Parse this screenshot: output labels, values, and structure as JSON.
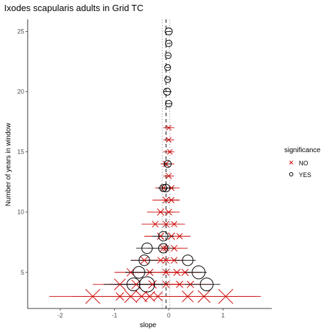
{
  "chart_data": {
    "type": "scatter",
    "title": "Ixodes scapularis adults in Grid TC",
    "xlabel": "slope",
    "ylabel": "Number of years in window",
    "xlim": [
      -2.6,
      1.9
    ],
    "ylim": [
      2.0,
      26.0
    ],
    "x_ticks": [
      -2,
      -1,
      0,
      1
    ],
    "x_tick_labels": [
      "-2",
      "-1",
      "0",
      "1"
    ],
    "y_ticks": [
      5,
      10,
      15,
      20,
      25
    ],
    "y_tick_labels": [
      "5",
      "10",
      "15",
      "20",
      "25"
    ],
    "reference_lines": {
      "solid_x": -0.05,
      "dashed_x": [
        -0.12,
        0.02
      ]
    },
    "grid": false,
    "legend": {
      "title": "significance",
      "position": "right",
      "entries": [
        {
          "label": "NO",
          "marker": "x",
          "color": "#cc0000"
        },
        {
          "label": "YES",
          "marker": "circle",
          "color": "#000000"
        }
      ]
    },
    "series": [
      {
        "name": "NO",
        "marker": "x",
        "color": "#cc0000",
        "points": [
          {
            "x": -1.4,
            "y": 3,
            "size": 1.0,
            "xmin": -2.2,
            "xmax": -0.5
          },
          {
            "x": -0.9,
            "y": 3,
            "size": 0.4,
            "xmin": -1.8,
            "xmax": 0.2
          },
          {
            "x": -0.7,
            "y": 3,
            "size": 0.8,
            "xmin": -1.6,
            "xmax": 0.4
          },
          {
            "x": -0.5,
            "y": 3,
            "size": 0.7,
            "xmin": -1.4,
            "xmax": 0.5
          },
          {
            "x": -0.35,
            "y": 3,
            "size": 0.6,
            "xmin": -1.3,
            "xmax": 0.7
          },
          {
            "x": -0.2,
            "y": 3,
            "size": 0.5,
            "xmin": -1.0,
            "xmax": 0.8
          },
          {
            "x": 0.35,
            "y": 3,
            "size": 0.7,
            "xmin": -0.6,
            "xmax": 1.3
          },
          {
            "x": 0.65,
            "y": 3,
            "size": 0.8,
            "xmin": -0.3,
            "xmax": 1.6
          },
          {
            "x": 1.05,
            "y": 3,
            "size": 1.0,
            "xmin": 0.0,
            "xmax": 1.7
          },
          {
            "x": -0.9,
            "y": 4,
            "size": 0.7,
            "xmin": -1.4,
            "xmax": -0.2
          },
          {
            "x": -0.6,
            "y": 4,
            "size": 0.5,
            "xmin": -1.1,
            "xmax": 0.0
          },
          {
            "x": -0.3,
            "y": 4,
            "size": 0.4,
            "xmin": -0.8,
            "xmax": 0.2
          },
          {
            "x": -0.05,
            "y": 4,
            "size": 0.3,
            "xmin": -0.4,
            "xmax": 0.3
          },
          {
            "x": 0.2,
            "y": 4,
            "size": 0.3,
            "xmin": -0.2,
            "xmax": 0.6
          },
          {
            "x": 0.4,
            "y": 4,
            "size": 0.3,
            "xmin": 0.0,
            "xmax": 0.8
          },
          {
            "x": -0.7,
            "y": 5,
            "size": 0.4,
            "xmin": -1.0,
            "xmax": -0.3
          },
          {
            "x": -0.35,
            "y": 5,
            "size": 0.3,
            "xmin": -0.7,
            "xmax": 0.0
          },
          {
            "x": -0.05,
            "y": 5,
            "size": 0.25,
            "xmin": -0.3,
            "xmax": 0.2
          },
          {
            "x": 0.15,
            "y": 5,
            "size": 0.3,
            "xmin": -0.1,
            "xmax": 0.4
          },
          {
            "x": 0.3,
            "y": 5,
            "size": 0.3,
            "xmin": 0.0,
            "xmax": 0.6
          },
          {
            "x": -0.45,
            "y": 6,
            "size": 0.3,
            "xmin": -0.7,
            "xmax": -0.2
          },
          {
            "x": -0.15,
            "y": 6,
            "size": 0.25,
            "xmin": -0.4,
            "xmax": 0.1
          },
          {
            "x": -0.05,
            "y": 6,
            "size": 0.2,
            "xmin": -0.25,
            "xmax": 0.2
          },
          {
            "x": 0.1,
            "y": 6,
            "size": 0.25,
            "xmin": -0.1,
            "xmax": 0.3
          },
          {
            "x": -0.1,
            "y": 7,
            "size": 0.3,
            "xmin": -0.4,
            "xmax": 0.3
          },
          {
            "x": -0.05,
            "y": 7,
            "size": 0.2,
            "xmin": -0.3,
            "xmax": 0.2
          },
          {
            "x": 0.1,
            "y": 7,
            "size": 0.25,
            "xmin": -0.1,
            "xmax": 0.35
          },
          {
            "x": -0.15,
            "y": 8,
            "size": 0.3,
            "xmin": -0.45,
            "xmax": 0.2
          },
          {
            "x": 0.05,
            "y": 8,
            "size": 0.3,
            "xmin": -0.2,
            "xmax": 0.35
          },
          {
            "x": 0.2,
            "y": 8,
            "size": 0.2,
            "xmin": 0.0,
            "xmax": 0.4
          },
          {
            "x": -0.25,
            "y": 9,
            "size": 0.25,
            "xmin": -0.5,
            "xmax": 0.0
          },
          {
            "x": -0.05,
            "y": 9,
            "size": 0.25,
            "xmin": -0.3,
            "xmax": 0.2
          },
          {
            "x": 0.1,
            "y": 9,
            "size": 0.2,
            "xmin": -0.1,
            "xmax": 0.3
          },
          {
            "x": -0.15,
            "y": 10,
            "size": 0.3,
            "xmin": -0.4,
            "xmax": 0.1
          },
          {
            "x": 0.0,
            "y": 10,
            "size": 0.25,
            "xmin": -0.2,
            "xmax": 0.2
          },
          {
            "x": -0.05,
            "y": 11,
            "size": 0.25,
            "xmin": -0.3,
            "xmax": 0.2
          },
          {
            "x": 0.05,
            "y": 11,
            "size": 0.2,
            "xmin": -0.1,
            "xmax": 0.2
          },
          {
            "x": -0.1,
            "y": 12,
            "size": 0.2,
            "xmin": -0.25,
            "xmax": 0.1
          },
          {
            "x": 0.05,
            "y": 12,
            "size": 0.2,
            "xmin": -0.1,
            "xmax": 0.2
          },
          {
            "x": 0.0,
            "y": 13,
            "size": 0.2,
            "xmin": -0.1,
            "xmax": 0.1
          },
          {
            "x": -0.05,
            "y": 14,
            "size": 0.2,
            "xmin": -0.15,
            "xmax": 0.1
          },
          {
            "x": 0.02,
            "y": 15,
            "size": 0.15,
            "xmin": -0.1,
            "xmax": 0.1
          },
          {
            "x": 0.0,
            "y": 16,
            "size": 0.15,
            "xmin": -0.1,
            "xmax": 0.1
          },
          {
            "x": 0.0,
            "y": 17,
            "size": 0.15,
            "xmin": -0.1,
            "xmax": 0.1
          }
        ]
      },
      {
        "name": "YES",
        "marker": "circle",
        "color": "#000000",
        "points": [
          {
            "x": -0.4,
            "y": 4,
            "size": 1.0,
            "xmin": -1.0,
            "xmax": 0.0
          },
          {
            "x": -0.65,
            "y": 4,
            "size": 0.8,
            "xmin": -1.2,
            "xmax": -0.1
          },
          {
            "x": 0.7,
            "y": 4,
            "size": 0.8,
            "xmin": 0.3,
            "xmax": 0.95
          },
          {
            "x": -0.55,
            "y": 5,
            "size": 0.7,
            "xmin": -0.8,
            "xmax": -0.3
          },
          {
            "x": 0.55,
            "y": 5,
            "size": 0.8,
            "xmin": 0.3,
            "xmax": 0.7
          },
          {
            "x": -0.45,
            "y": 6,
            "size": 0.6,
            "xmin": -0.7,
            "xmax": -0.2
          },
          {
            "x": 0.35,
            "y": 6,
            "size": 0.6,
            "xmin": 0.1,
            "xmax": 0.5
          },
          {
            "x": -0.4,
            "y": 7,
            "size": 0.6,
            "xmin": -0.6,
            "xmax": -0.2
          },
          {
            "x": -0.1,
            "y": 7,
            "size": 0.5,
            "xmin": -0.3,
            "xmax": 0.1
          },
          {
            "x": -0.1,
            "y": 8,
            "size": 0.5,
            "xmin": -0.3,
            "xmax": 0.1
          },
          {
            "x": -0.05,
            "y": 12,
            "size": 0.35,
            "xmin": -0.2,
            "xmax": 0.1
          },
          {
            "x": -0.1,
            "y": 12,
            "size": 0.3,
            "xmin": -0.2,
            "xmax": 0.0
          },
          {
            "x": -0.02,
            "y": 14,
            "size": 0.3,
            "xmin": -0.1,
            "xmax": 0.05
          },
          {
            "x": -0.03,
            "y": 20,
            "size": 0.3,
            "xmin": -0.1,
            "xmax": 0.05
          },
          {
            "x": 0.0,
            "y": 19,
            "size": 0.25,
            "xmin": -0.05,
            "xmax": 0.05
          },
          {
            "x": -0.02,
            "y": 21,
            "size": 0.2,
            "xmin": -0.05,
            "xmax": 0.03
          },
          {
            "x": -0.02,
            "y": 22,
            "size": 0.2,
            "xmin": -0.05,
            "xmax": 0.02
          },
          {
            "x": -0.01,
            "y": 23,
            "size": 0.2,
            "xmin": -0.05,
            "xmax": 0.02
          },
          {
            "x": 0.0,
            "y": 24,
            "size": 0.25,
            "xmin": -0.04,
            "xmax": 0.04
          },
          {
            "x": 0.0,
            "y": 25,
            "size": 0.3,
            "xmin": -0.05,
            "xmax": 0.05
          }
        ]
      }
    ]
  }
}
